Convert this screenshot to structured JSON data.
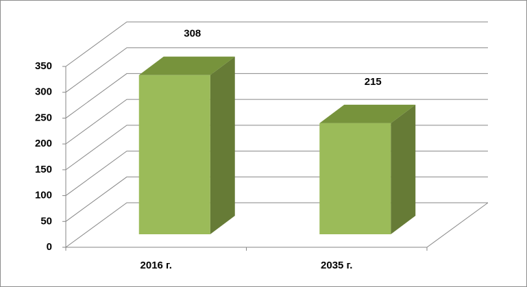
{
  "chart_data": {
    "type": "bar3d",
    "categories": [
      "2016 г.",
      "2035 г."
    ],
    "values": [
      308,
      215
    ],
    "colors": {
      "front": "#9bbb59",
      "top": "#77933c",
      "side": "#667b36"
    },
    "ylim": [
      0,
      350
    ],
    "yticks": [
      0,
      50,
      100,
      150,
      200,
      250,
      300,
      350
    ],
    "grid": true
  }
}
